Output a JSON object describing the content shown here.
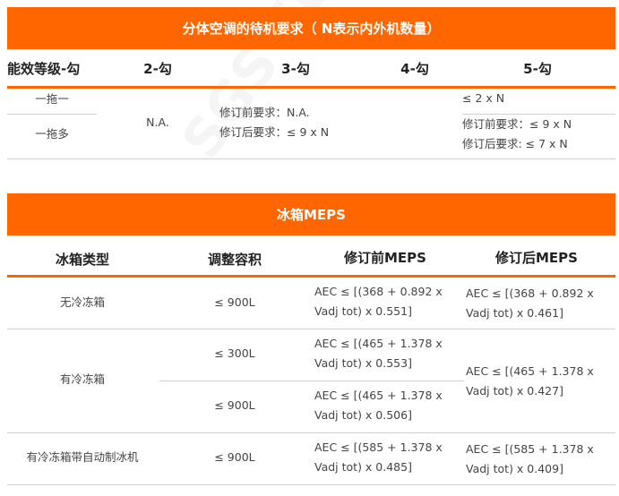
{
  "table1": {
    "title": "分体空调的待机要求（ N表示内外机数量）",
    "headers": [
      "能效等级-勾",
      "2-勾",
      "3-勾",
      "4-勾",
      "5-勾"
    ],
    "row_labels": [
      "一拖一",
      "一拖多"
    ],
    "col2": "N.A.",
    "col3": [
      "修订前要求：N.A.",
      "修订后要求：≤ 9 x N"
    ],
    "col5_row1": "≤ 2 x N",
    "col5_row2": [
      "修订前要求：≤ 9 x N",
      "修订后要求: ≤ 7 x N"
    ]
  },
  "table2": {
    "title": "冰箱MEPS",
    "headers": [
      "冰箱类型",
      "调整容积",
      "修订前MEPS",
      "修订后MEPS"
    ],
    "rows": [
      {
        "type": "无冷冻箱",
        "volume": "≤ 900L",
        "before": [
          "AEC ≤ [(368 + 0.892 x",
          "Vadj tot) x 0.551]"
        ],
        "after": [
          "AEC ≤ [(368 + 0.892 x",
          "Vadj tot) x 0.461]"
        ]
      },
      {
        "type": "有冷冻箱",
        "volume_a": "≤ 300L",
        "before_a": [
          "AEC ≤ [(465 + 1.378 x",
          "Vadj tot) x 0.553]"
        ],
        "volume_b": "≤ 900L",
        "before_b": [
          "AEC ≤ [(465 + 1.378 x",
          "Vadj tot) x 0.506]"
        ],
        "after": [
          "AEC ≤ [(465 + 1.378 x",
          "Vadj tot) x 0.427]"
        ]
      },
      {
        "type": "有冷冻箱带自动制冰机",
        "volume": "≤ 900L",
        "before": [
          "AEC ≤ [(585 + 1.378 x",
          "Vadj tot) x 0.485]"
        ],
        "after": [
          "AEC ≤ [(585 + 1.378 x",
          "Vadj tot) x 0.409]"
        ]
      }
    ]
  },
  "watermark": "SGS EEC"
}
